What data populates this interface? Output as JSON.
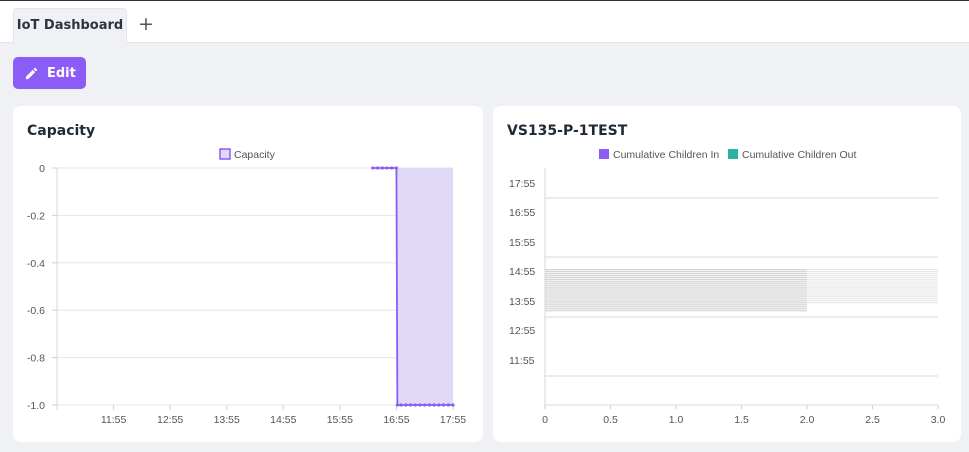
{
  "tabs": {
    "active_label": "IoT Dashboard",
    "add_label": "+"
  },
  "toolbar": {
    "edit_label": "Edit"
  },
  "colors": {
    "accent": "#8b5cf6",
    "series_in": "#8b5cf6",
    "series_out": "#2ab4a0"
  },
  "chart_data": [
    {
      "type": "area",
      "title": "Capacity",
      "legend": [
        "Capacity"
      ],
      "x_ticks": [
        "11:55",
        "12:55",
        "13:55",
        "14:55",
        "15:55",
        "16:55",
        "17:55"
      ],
      "y_ticks": [
        "0",
        "-0.2",
        "-0.4",
        "-0.6",
        "-0.8",
        "-1.0"
      ],
      "ylim": [
        -1.0,
        0
      ],
      "series": [
        {
          "name": "Capacity",
          "points": [
            [
              "16:30",
              0
            ],
            [
              "16:35",
              0
            ],
            [
              "16:40",
              0
            ],
            [
              "16:45",
              0
            ],
            [
              "16:50",
              0
            ],
            [
              "16:55",
              0
            ],
            [
              "16:56",
              -1
            ],
            [
              "17:00",
              -1
            ],
            [
              "17:05",
              -1
            ],
            [
              "17:10",
              -1
            ],
            [
              "17:15",
              -1
            ],
            [
              "17:20",
              -1
            ],
            [
              "17:25",
              -1
            ],
            [
              "17:30",
              -1
            ],
            [
              "17:35",
              -1
            ],
            [
              "17:40",
              -1
            ],
            [
              "17:45",
              -1
            ],
            [
              "17:50",
              -1
            ],
            [
              "17:55",
              -1
            ]
          ]
        }
      ]
    },
    {
      "type": "bar",
      "title": "VS135-P-1TEST",
      "legend": [
        "Cumulative Children In",
        "Cumulative Children Out"
      ],
      "x_ticks": [
        "0",
        "0.5",
        "1.0",
        "1.5",
        "2.0",
        "2.5",
        "3.0"
      ],
      "y_ticks": [
        "17:55",
        "16:55",
        "15:55",
        "14:55",
        "13:55",
        "12:55",
        "11:55"
      ],
      "xlim": [
        0,
        3
      ],
      "series": [
        {
          "name": "Cumulative Children In",
          "values": [
            2,
            3
          ]
        },
        {
          "name": "Cumulative Children Out",
          "values": [
            0,
            0
          ]
        }
      ]
    }
  ]
}
